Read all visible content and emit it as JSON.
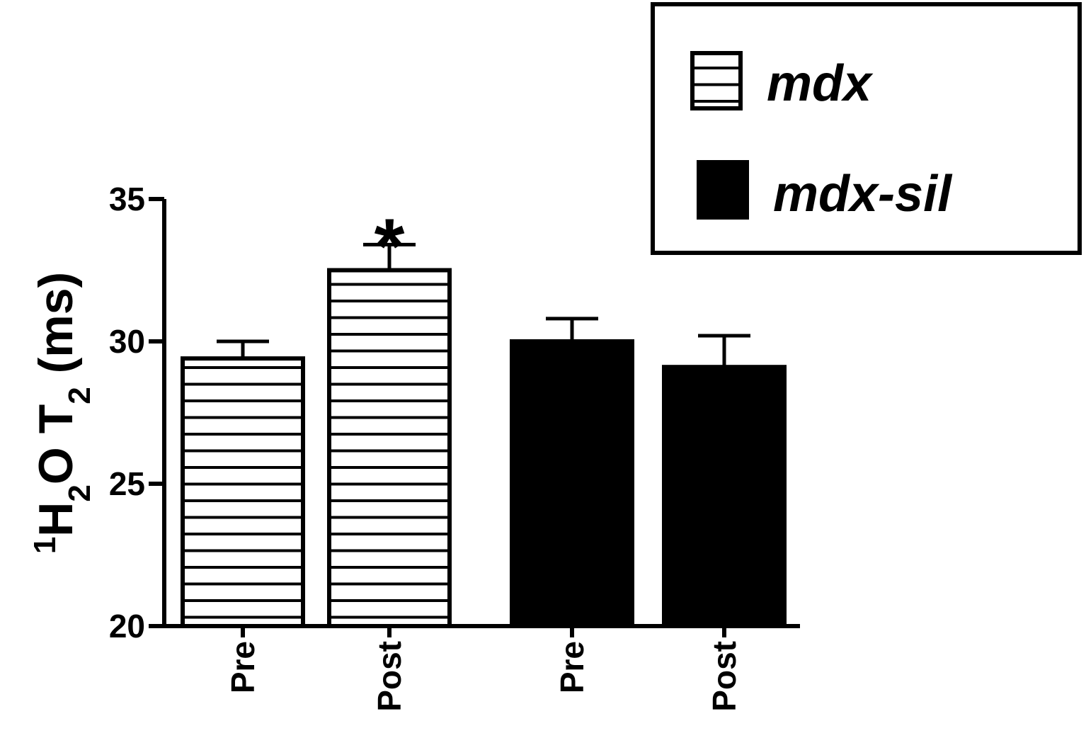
{
  "chart_data": {
    "type": "bar",
    "ylabel": [
      "1",
      "H",
      "2",
      "O T",
      "2",
      " (ms)"
    ],
    "categories": [
      "Pre",
      "Post"
    ],
    "series": [
      {
        "name": "mdx",
        "color": "#000000",
        "pattern": "horizontal-lines",
        "values": [
          29.4,
          32.5
        ],
        "errors": [
          0.6,
          0.9
        ]
      },
      {
        "name": "mdx-sil",
        "color": "#000000",
        "pattern": "solid",
        "values": [
          30.0,
          29.1
        ],
        "errors": [
          0.8,
          1.1
        ]
      }
    ],
    "annotations": [
      {
        "text": "*",
        "series": 0,
        "category": 1
      }
    ],
    "ylim": [
      20,
      35
    ],
    "yticks": [
      20,
      25,
      30,
      35
    ],
    "legend": "top-right"
  }
}
